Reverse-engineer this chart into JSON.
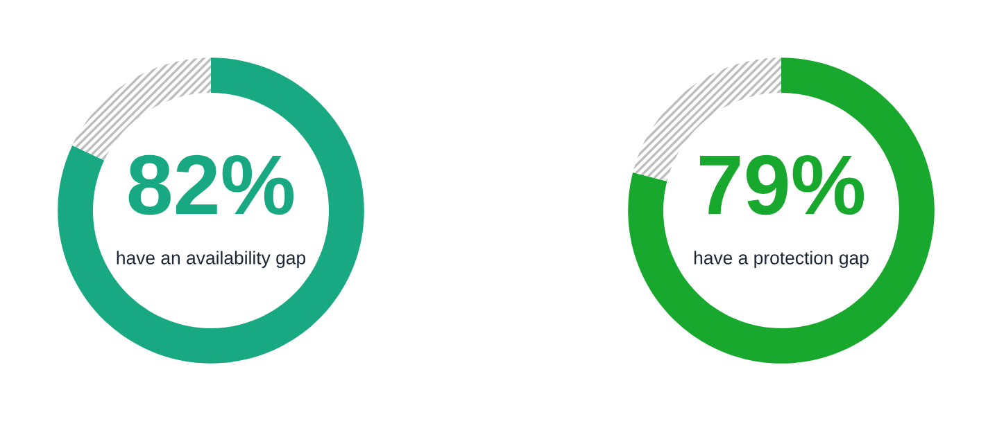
{
  "chart_data": [
    {
      "type": "donut",
      "categories": [
        null,
        null
      ],
      "values": [
        82,
        18
      ],
      "colors": [
        "#18a982",
        "#bdbdbd"
      ],
      "value_labels": [
        "82%",
        null
      ],
      "annotations": [
        "have an availability gap"
      ]
    },
    {
      "type": "donut",
      "categories": [
        null,
        null
      ],
      "values": [
        79,
        21
      ],
      "colors": [
        "#18a82d",
        "#bdbdbd"
      ],
      "value_labels": [
        "79%",
        null
      ],
      "annotations": [
        "have a protection gap"
      ]
    }
  ]
}
